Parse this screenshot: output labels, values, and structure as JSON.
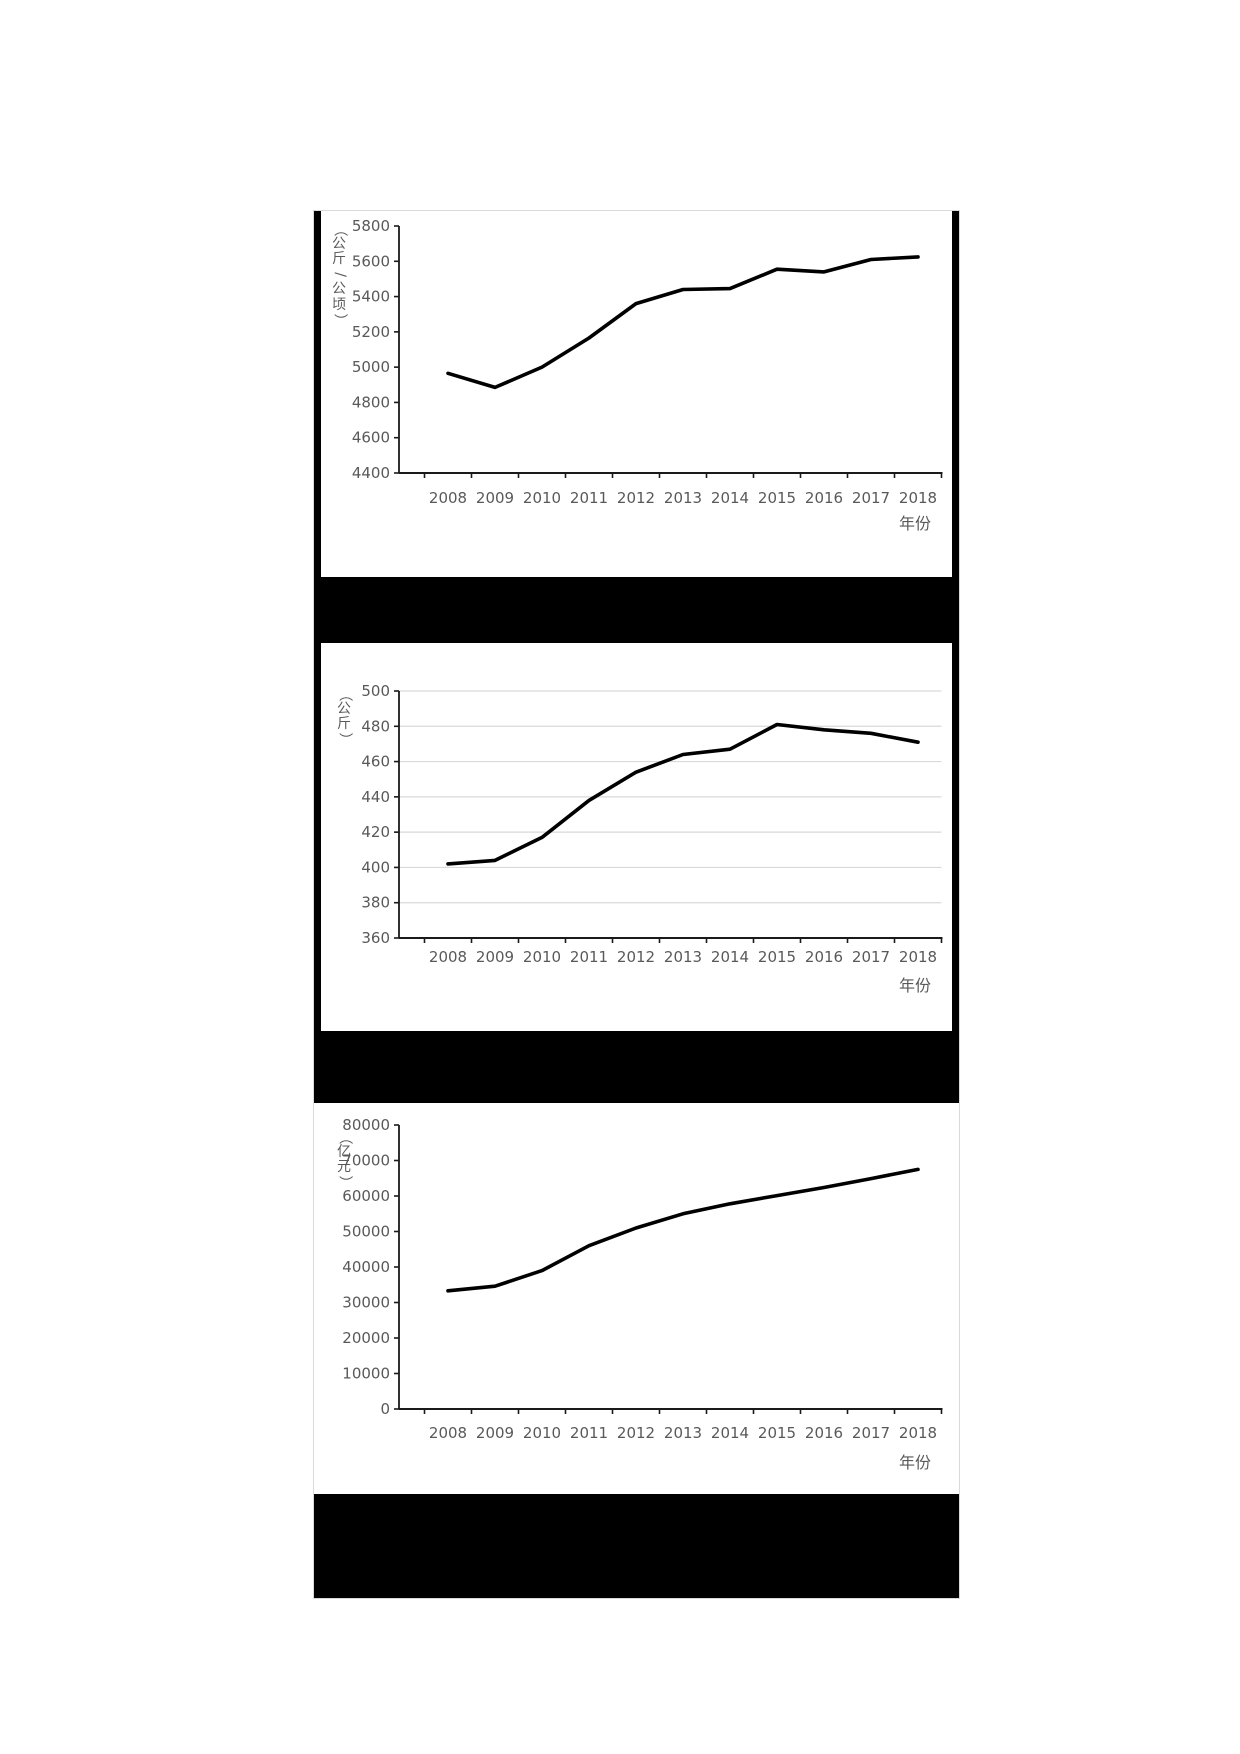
{
  "page": {
    "background": "#ffffff"
  },
  "figure": {
    "border_color": "#d9d9d9",
    "side_bar_color": "#000000",
    "redaction_band_color": "#000000",
    "redaction_band_count": 3
  },
  "axis_text_color": "#595959",
  "axis_line_color": "#1a1a1a",
  "grid_color": "#d9d9d9",
  "series_color": "#000000",
  "chart_data": [
    {
      "type": "line",
      "title": "",
      "xlabel": "年份",
      "ylabel": "（公斤/公顷）",
      "ylabel_chars": [
        "（",
        "公",
        "斤",
        "/",
        "公",
        "顷",
        "）"
      ],
      "categories": [
        "2008",
        "2009",
        "2010",
        "2011",
        "2012",
        "2013",
        "2014",
        "2015",
        "2016",
        "2017",
        "2018"
      ],
      "values": [
        4965,
        4885,
        5000,
        5165,
        5360,
        5440,
        5445,
        5555,
        5540,
        5610,
        5625
      ],
      "ylim": [
        4400,
        5800
      ],
      "ytick_step": 200,
      "grid": false,
      "legend": "none"
    },
    {
      "type": "line",
      "title": "",
      "xlabel": "年份",
      "ylabel": "（公斤）",
      "ylabel_chars": [
        "（",
        "公",
        "斤",
        "）"
      ],
      "categories": [
        "2008",
        "2009",
        "2010",
        "2011",
        "2012",
        "2013",
        "2014",
        "2015",
        "2016",
        "2017",
        "2018"
      ],
      "values": [
        402,
        404,
        417,
        438,
        454,
        464,
        467,
        481,
        478,
        476,
        471
      ],
      "ylim": [
        360,
        500
      ],
      "ytick_step": 20,
      "grid": true,
      "legend": "none"
    },
    {
      "type": "line",
      "title": "",
      "xlabel": "年份",
      "ylabel": "（亿元）",
      "ylabel_chars": [
        "（",
        "亿",
        "元",
        "）"
      ],
      "categories": [
        "2008",
        "2009",
        "2010",
        "2011",
        "2012",
        "2013",
        "2014",
        "2015",
        "2016",
        "2017",
        "2018"
      ],
      "values": [
        33300,
        34600,
        39000,
        46000,
        51000,
        55000,
        57800,
        60100,
        62400,
        64900,
        67500
      ],
      "ylim": [
        0,
        80000
      ],
      "ytick_step": 10000,
      "grid": false,
      "legend": "none"
    }
  ]
}
